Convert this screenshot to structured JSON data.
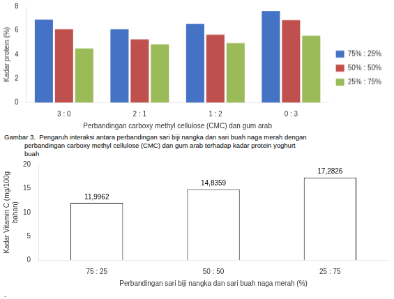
{
  "chart_data": [
    {
      "type": "bar",
      "categories": [
        "3 : 0",
        "2 : 1",
        "1 : 2",
        "0 : 3"
      ],
      "series": [
        {
          "name": "75% : 25%",
          "color": "#4472C4",
          "values": [
            6.9,
            6.1,
            6.55,
            7.6
          ]
        },
        {
          "name": "50% : 50%",
          "color": "#C0504D",
          "values": [
            6.1,
            5.25,
            5.65,
            6.85
          ]
        },
        {
          "name": "25% : 75%",
          "color": "#9BBB59",
          "values": [
            4.5,
            4.85,
            4.95,
            5.55
          ]
        }
      ],
      "xlabel": "Perbandingan carboxy methyl cellulose (CMC) dan gum arab",
      "ylabel": "Kadar protein (%)",
      "ylim": [
        0,
        8
      ],
      "yticks": [
        0,
        2,
        4,
        6,
        8
      ],
      "grid": false,
      "legend": "right",
      "annotations": [
        "Gambar 3.  Pengaruh interaksi antara perbandingan sari biji nangka dan sari buah naga merah dengan",
        "           perbandingan carboxy methyl cellulose (CMC) dan gum arab terhadap kadar protein yoghurt",
        "           buah"
      ]
    },
    {
      "type": "bar",
      "categories": [
        "75 : 25",
        "50 : 50",
        "25 : 75"
      ],
      "values": [
        11.9962,
        14.8359,
        17.2826
      ],
      "value_labels": [
        "11,9962",
        "14,8359",
        "17,2826"
      ],
      "data_labels": true,
      "color": "#ffffff",
      "xlabel": "Perbandingan sari biji nangka dan sari buah naga merah (%)",
      "ylabel": "Kadar Vitamin C (mg/100g\nbahan)",
      "ylim": [
        0,
        20
      ],
      "yticks": [
        0,
        5,
        10,
        15,
        20
      ],
      "grid": false,
      "annotations": [
        "."
      ]
    }
  ]
}
